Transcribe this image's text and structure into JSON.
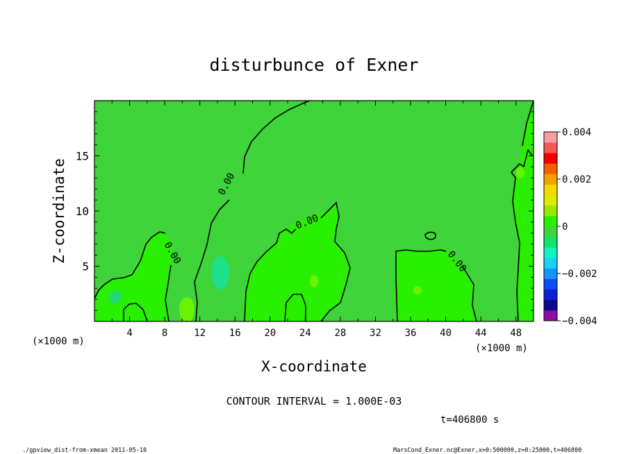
{
  "chart_data": {
    "type": "heatmap",
    "title": "disturbunce of Exner",
    "xlabel": "X-coordinate",
    "ylabel": "Z-coordinate",
    "x_unit": "(×1000 m)",
    "y_unit": "(×1000 m)",
    "xlim": [
      0,
      50
    ],
    "ylim": [
      0,
      20
    ],
    "x_ticks": [
      "4",
      "8",
      "12",
      "16",
      "20",
      "24",
      "28",
      "32",
      "36",
      "40",
      "44",
      "48"
    ],
    "y_ticks": [
      "5",
      "10",
      "15"
    ],
    "contour_label": "0.00",
    "contour_interval_text": "CONTOUR INTERVAL = 1.000E-03",
    "time_text": "t=406800 s",
    "colorbar": {
      "min": -0.004,
      "max": 0.004,
      "tick_labels": [
        "0.004",
        "0.002",
        "0",
        "−0.002",
        "−0.004"
      ],
      "colors": [
        "#8c0fa0",
        "#0a0a8c",
        "#0c1fd4",
        "#0a4cf5",
        "#1494f5",
        "#18d2f5",
        "#12f2c2",
        "#10e46a",
        "#3ed43a",
        "#28f000",
        "#98e800",
        "#dcec00",
        "#f4d800",
        "#f4a000",
        "#f46000",
        "#f40000",
        "#f45858",
        "#f8a0a0"
      ]
    },
    "regions": [
      {
        "name": "near-zero background",
        "value": 0.0
      },
      {
        "name": "positive lobe x≈2-13",
        "value": 0.0005
      },
      {
        "name": "positive lobe x≈18-28",
        "value": 0.0005
      },
      {
        "name": "positive lobe x≈35-43",
        "value": 0.0005
      },
      {
        "name": "positive strip x≈47-50",
        "value": 0.0005
      },
      {
        "name": "negative spot x≈14.5 z≈4.5",
        "value": -0.0005
      }
    ]
  },
  "footer": {
    "left": "./gpview_dist-from-xmean  2011-05-10",
    "right": "MarsCond_Exner.nc@Exner,x=0:500000,z=0:25000,t=406800"
  }
}
